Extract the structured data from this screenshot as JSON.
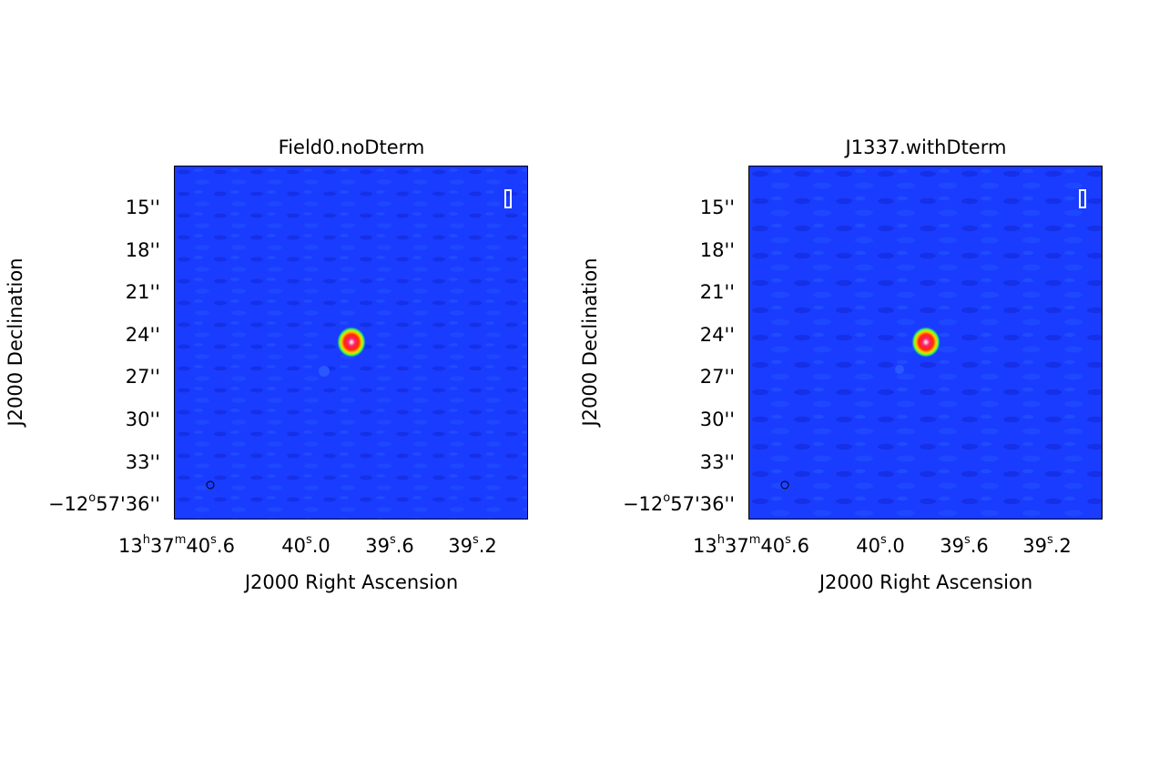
{
  "panels": [
    {
      "title": "Field0.noDterm",
      "xlabel": "J2000 Right Ascension",
      "ylabel": "J2000 Declination",
      "yticks": [
        "15''",
        "18''",
        "21''",
        "24''",
        "27''",
        "30''",
        "33''"
      ],
      "ytick_last_prefix": "−12",
      "ytick_last_deg": "o",
      "ytick_last_rest": "57'36''",
      "xtick0_a": "13",
      "xtick0_h": "h",
      "xtick0_b": "37",
      "xtick0_m": "m",
      "xtick0_c": "40",
      "xtick0_s": "s",
      "xtick0_d": ".6",
      "xtick1_a": "40",
      "xtick1_s": "s",
      "xtick1_d": ".0",
      "xtick2_a": "39",
      "xtick2_s": "s",
      "xtick2_d": ".6",
      "xtick3_a": "39",
      "xtick3_s": "s",
      "xtick3_d": ".2"
    },
    {
      "title": "J1337.withDterm",
      "xlabel": "J2000 Right Ascension",
      "ylabel": "J2000 Declination",
      "yticks": [
        "15''",
        "18''",
        "21''",
        "24''",
        "27''",
        "30''",
        "33''"
      ],
      "ytick_last_prefix": "−12",
      "ytick_last_deg": "o",
      "ytick_last_rest": "57'36''",
      "xtick0_a": "13",
      "xtick0_h": "h",
      "xtick0_b": "37",
      "xtick0_m": "m",
      "xtick0_c": "40",
      "xtick0_s": "s",
      "xtick0_d": ".6",
      "xtick1_a": "40",
      "xtick1_s": "s",
      "xtick1_d": ".0",
      "xtick2_a": "39",
      "xtick2_s": "s",
      "xtick2_d": ".6",
      "xtick3_a": "39",
      "xtick3_s": "s",
      "xtick3_d": ".2"
    }
  ],
  "colors": {
    "background_field": "#1a3cff",
    "source_core": "#ff1f6e",
    "source_ring": "#ffd700"
  }
}
